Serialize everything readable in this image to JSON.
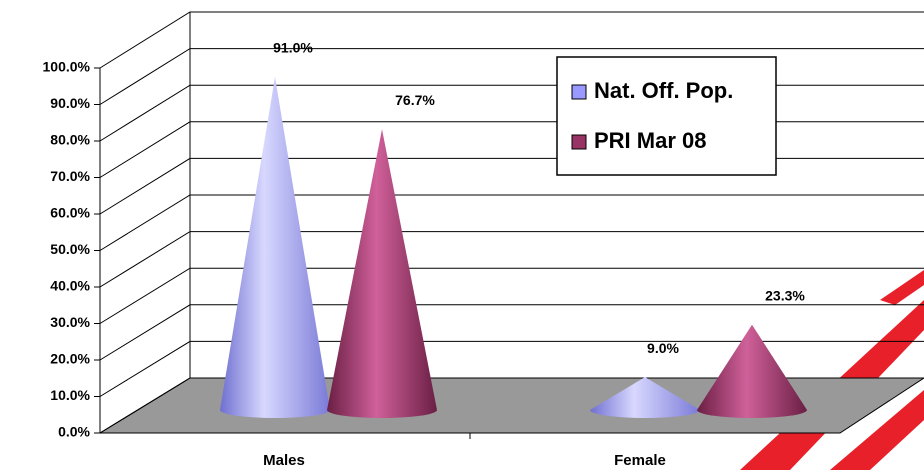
{
  "chart_data": {
    "type": "cone",
    "categories": [
      "Males",
      "Female"
    ],
    "series": [
      {
        "name": "Nat. Off. Pop.",
        "color": "#9999ff",
        "values": [
          91,
          9
        ],
        "value_labels": [
          "91.0%",
          "9.0%"
        ]
      },
      {
        "name": "PRI Mar 08",
        "color": "#993366",
        "values": [
          76.7,
          23.3
        ],
        "value_labels": [
          "76.7%",
          "23.3%"
        ]
      }
    ],
    "ylim": [
      0,
      100
    ],
    "yticks": [
      {
        "value": 0,
        "label": "0.0%"
      },
      {
        "value": 10,
        "label": "10.0%"
      },
      {
        "value": 20,
        "label": "20.0%"
      },
      {
        "value": 30,
        "label": "30.0%"
      },
      {
        "value": 40,
        "label": "40.0%"
      },
      {
        "value": 50,
        "label": "50.0%"
      },
      {
        "value": 60,
        "label": "60.0%"
      },
      {
        "value": 70,
        "label": "70.0%"
      },
      {
        "value": 80,
        "label": "80.0%"
      },
      {
        "value": 90,
        "label": "90.0%"
      },
      {
        "value": 100,
        "label": "100.0%"
      }
    ],
    "grid": true,
    "legend": "top-right"
  }
}
